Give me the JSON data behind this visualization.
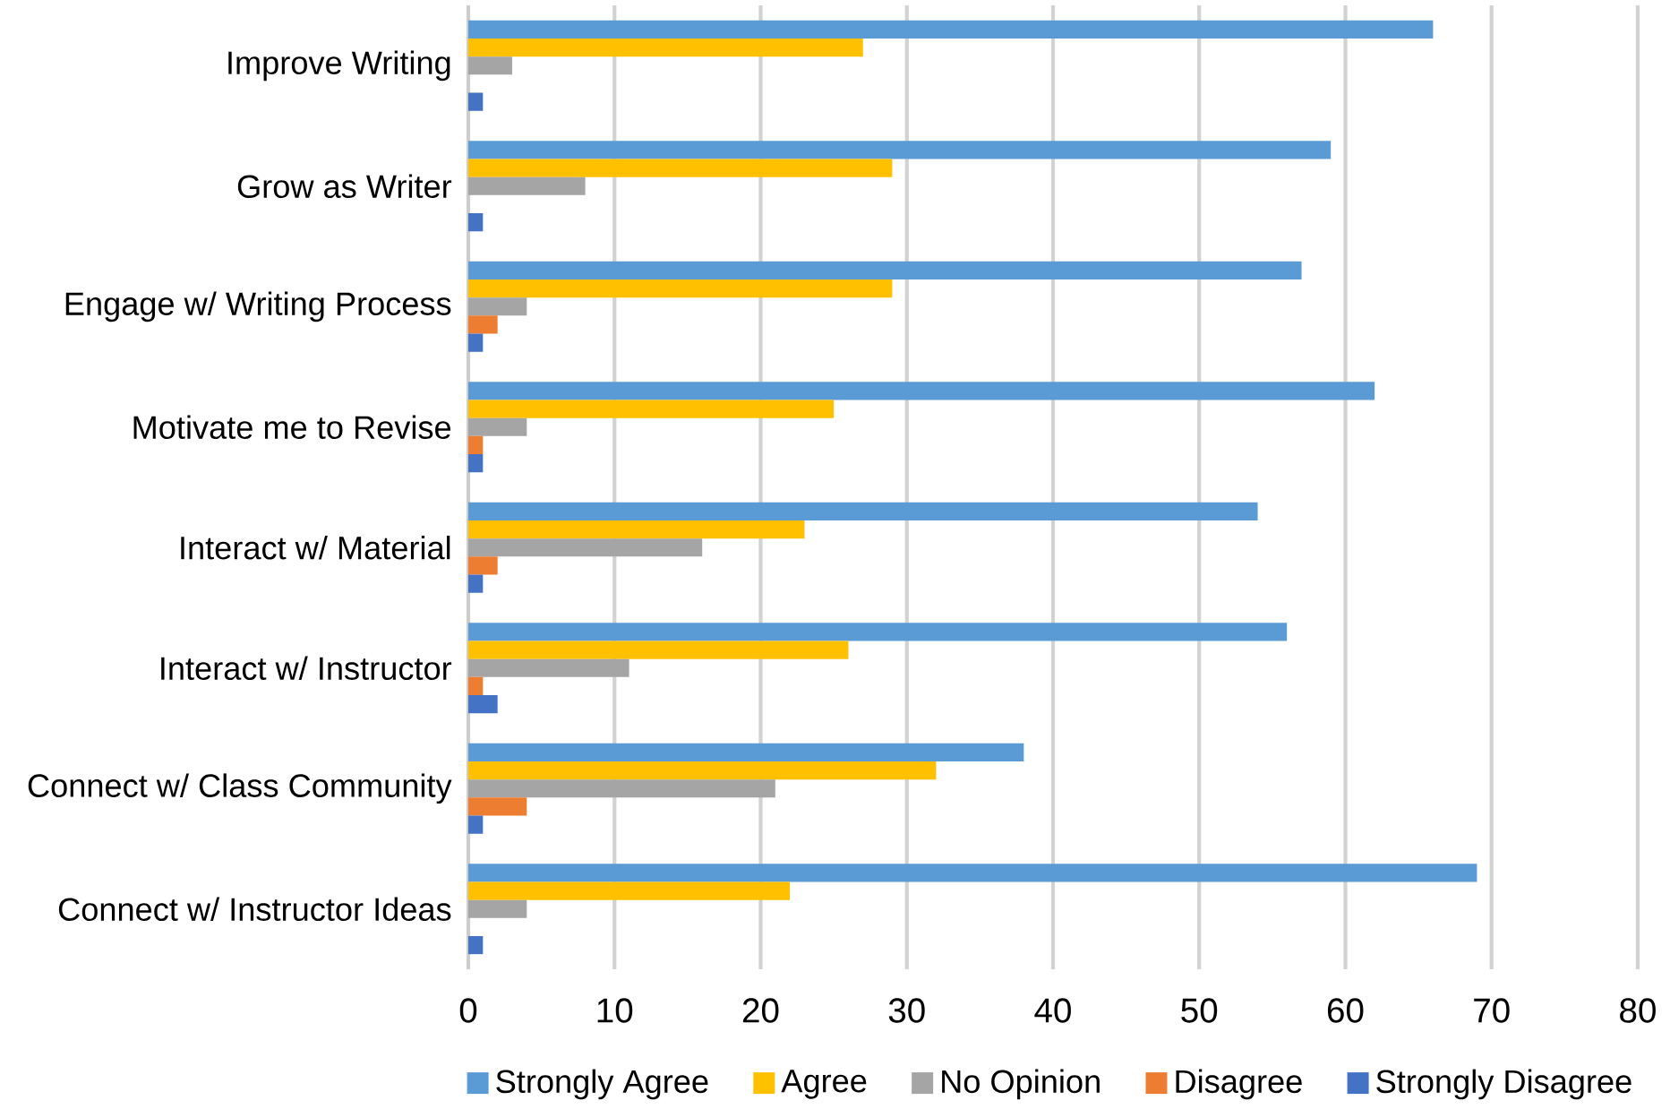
{
  "chart_data": {
    "type": "bar",
    "orientation": "horizontal",
    "categories": [
      "Improve Writing",
      "Grow as Writer",
      "Engage w/ Writing Process",
      "Motivate me to Revise",
      "Interact w/ Material",
      "Interact w/ Instructor",
      "Connect w/ Class Community",
      "Connect w/ Instructor Ideas"
    ],
    "series": [
      {
        "name": "Strongly Agree",
        "color": "#5b9bd5",
        "values": [
          66,
          59,
          57,
          62,
          54,
          56,
          38,
          69
        ]
      },
      {
        "name": "Agree",
        "color": "#ffc000",
        "values": [
          27,
          29,
          29,
          25,
          23,
          26,
          32,
          22
        ]
      },
      {
        "name": "No Opinion",
        "color": "#a5a5a5",
        "values": [
          3,
          8,
          4,
          4,
          16,
          11,
          21,
          4
        ]
      },
      {
        "name": "Disagree",
        "color": "#ed7d31",
        "values": [
          null,
          null,
          2,
          1,
          2,
          1,
          4,
          null
        ]
      },
      {
        "name": "Strongly Disagree",
        "color": "#4472c4",
        "values": [
          1,
          1,
          1,
          1,
          1,
          2,
          1,
          1
        ]
      }
    ],
    "xlim": [
      0,
      80
    ],
    "xticks": [
      0,
      10,
      20,
      30,
      40,
      50,
      60,
      70,
      80
    ],
    "grid": "x",
    "legend": "bottom"
  }
}
